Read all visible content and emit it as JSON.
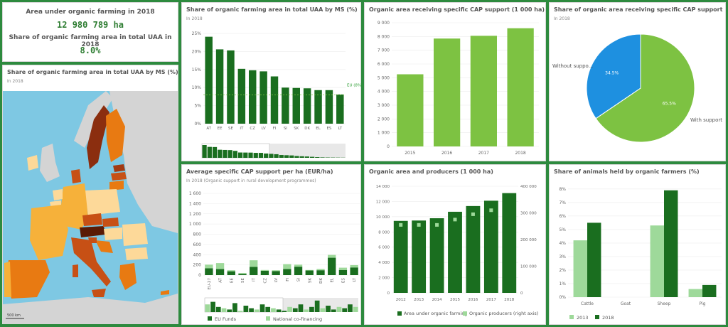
{
  "kpi": {
    "area_label": "Area under organic farming in 2018",
    "area_value": "12 980 789 ha",
    "share_label": "Share of organic farming area in total UAA in 2018",
    "share_value": "8.0%"
  },
  "map_panel": {
    "title": "Share of organic farming area in total UAA by MS (%)",
    "subtitle": "In 2018",
    "scale_label": "500 km"
  },
  "colors": {
    "dark_green": "#1a6e1f",
    "light_green": "#7dc242",
    "blue": "#1e90e0",
    "pale_green": "#9ed99a",
    "sea": "#7ec8e3",
    "land_grey": "#d4d4d4"
  },
  "chart_data": [
    {
      "id": "share_by_ms",
      "type": "bar",
      "title": "Share of organic farming area in total UAA by MS (%)",
      "subtitle": "In 2018",
      "categories": [
        "AT",
        "EE",
        "SE",
        "IT",
        "CZ",
        "LV",
        "FI",
        "SI",
        "SK",
        "DK",
        "EL",
        "ES",
        "LT"
      ],
      "values": [
        24.1,
        20.6,
        20.3,
        15.2,
        14.8,
        14.5,
        13.1,
        10.0,
        9.9,
        9.8,
        9.3,
        9.3,
        8.1
      ],
      "yticks": [
        "0%",
        "5%",
        "10%",
        "15%",
        "20%",
        "25%"
      ],
      "ylim": [
        0,
        26
      ],
      "reference_label": "EU (8%)",
      "reference_value": 8.0,
      "mini_values": [
        24.1,
        20.6,
        20.3,
        15.2,
        14.8,
        14.5,
        13.1,
        10.0,
        9.9,
        9.8,
        9.3,
        9.3,
        8.1,
        7.5,
        6.8,
        5.3,
        4.9,
        4.5,
        3.4,
        2.9,
        2.5,
        1.9,
        1.3,
        0.8,
        0.6,
        0.5,
        0.4,
        0.3
      ]
    },
    {
      "id": "cap_support_area",
      "type": "bar",
      "title": "Organic area receiving specific CAP support (1 000 ha)",
      "categories": [
        "2015",
        "2016",
        "2017",
        "2018"
      ],
      "values": [
        5250,
        7850,
        8050,
        8600
      ],
      "ylim": [
        0,
        9000
      ],
      "yticks": [
        "0",
        "1 000",
        "2 000",
        "3 000",
        "4 000",
        "5 000",
        "6 000",
        "7 000",
        "8 000",
        "9 000"
      ]
    },
    {
      "id": "cap_support_share",
      "type": "pie",
      "title": "Share of organic area receiving specific CAP support",
      "subtitle": "In 2018",
      "slices": [
        {
          "name": "With support",
          "value": 65.5,
          "label": "65.5%"
        },
        {
          "name": "Without suppo...",
          "value": 34.5,
          "label": "34.5%"
        }
      ]
    },
    {
      "id": "cap_per_ha",
      "type": "bar",
      "title": "Average specific CAP support per ha (EUR/ha)",
      "subtitle": "In 2018 (Organic support in rural development programmes)",
      "categories": [
        "EU-27",
        "AT",
        "EE",
        "SE",
        "IT",
        "CZ",
        "LV",
        "FI",
        "SI",
        "SK",
        "DK",
        "EL",
        "ES",
        "LT"
      ],
      "series": [
        {
          "name": "EU Funds",
          "values": [
            135,
            120,
            75,
            25,
            160,
            85,
            80,
            120,
            165,
            90,
            95,
            340,
            100,
            150
          ]
        },
        {
          "name": "National co-financing",
          "values": [
            70,
            115,
            20,
            15,
            130,
            15,
            15,
            95,
            40,
            10,
            25,
            55,
            45,
            45
          ]
        }
      ],
      "ylim": [
        0,
        1600
      ],
      "yticks": [
        "0",
        "200",
        "400",
        "600",
        "800",
        "1 000",
        "1 200",
        "1 400",
        "1 600"
      ],
      "mini_values": [
        60,
        80,
        40,
        30,
        20,
        70,
        10,
        50,
        30,
        20,
        60,
        40,
        30,
        20,
        10,
        40,
        30,
        60,
        20,
        40,
        90,
        30,
        50,
        20,
        40,
        30,
        60,
        40
      ]
    },
    {
      "id": "area_producers",
      "type": "bar",
      "title": "Organic area and producers (1 000 ha)",
      "categories": [
        "2012",
        "2013",
        "2014",
        "2015",
        "2016",
        "2017",
        "2018"
      ],
      "series": [
        {
          "name": "Area under organic farming",
          "values": [
            9450,
            9500,
            9800,
            10650,
            11400,
            12100,
            13100
          ]
        },
        {
          "name": "Organic producers (right axis)",
          "values": [
            255000,
            255000,
            255000,
            275000,
            295000,
            310000,
            0
          ]
        }
      ],
      "ylim": [
        0,
        14000
      ],
      "yticks": [
        "0",
        "2 000",
        "4 000",
        "6 000",
        "8 000",
        "10 000",
        "12 000",
        "14 000"
      ],
      "y2ticks": [
        "0",
        "100 000",
        "200 000",
        "300 000",
        "400 000"
      ],
      "legend": [
        {
          "label": "Area under organic farming"
        },
        {
          "label": "Organic producers (right axis)"
        }
      ]
    },
    {
      "id": "animals_share",
      "type": "bar",
      "title": "Share of animals held by organic farmers (%)",
      "categories": [
        "Cattle",
        "Goat",
        "Sheep",
        "Pig"
      ],
      "series": [
        {
          "name": "2013",
          "values": [
            4.2,
            0,
            5.3,
            0.6
          ]
        },
        {
          "name": "2018",
          "values": [
            5.5,
            0,
            7.9,
            0.9
          ]
        }
      ],
      "ylim": [
        0,
        8.2
      ],
      "yticks": [
        "0%",
        "1%",
        "2%",
        "3%",
        "4%",
        "5%",
        "6%",
        "7%",
        "8%"
      ]
    }
  ]
}
